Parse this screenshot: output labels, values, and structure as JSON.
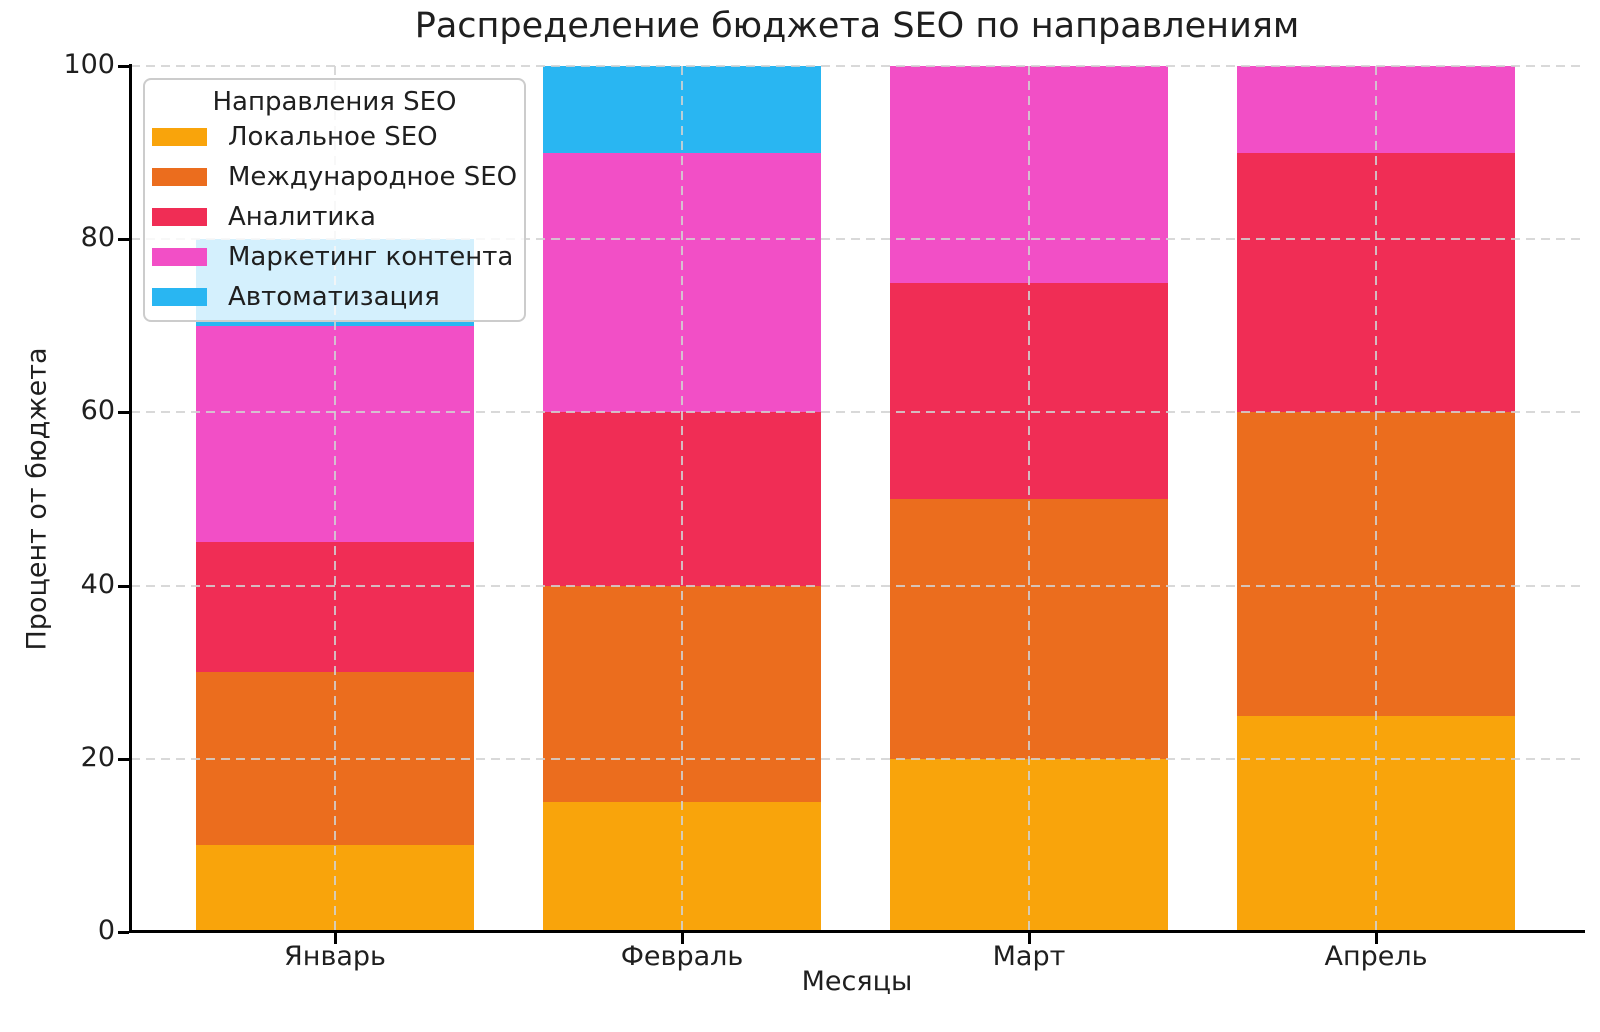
{
  "chart": {
    "title": "Распределение бюджета SEO по направлениям",
    "xlabel": "Месяцы",
    "ylabel": "Процент от бюджета"
  },
  "chart_data": {
    "type": "bar",
    "stacked": true,
    "title": "Распределение бюджета SEO по направлениям",
    "xlabel": "Месяцы",
    "ylabel": "Процент от бюджета",
    "categories": [
      "Январь",
      "Февраль",
      "Март",
      "Апрель"
    ],
    "series": [
      {
        "name": "Локальное SEO",
        "color": "#F9A40B",
        "values": [
          10,
          15,
          20,
          25
        ]
      },
      {
        "name": "Международное SEO",
        "color": "#EB6D1E",
        "values": [
          20,
          25,
          30,
          35
        ]
      },
      {
        "name": "Аналитика",
        "color": "#F02D55",
        "values": [
          15,
          20,
          25,
          30
        ]
      },
      {
        "name": "Маркетинг контента",
        "color": "#F24FC6",
        "values": [
          25,
          30,
          25,
          10
        ]
      },
      {
        "name": "Автоматизация",
        "color": "#29B6F2",
        "values": [
          10,
          10,
          0,
          0
        ]
      }
    ],
    "stack_totals": [
      80,
      100,
      100,
      100
    ],
    "ylim": [
      0,
      100
    ],
    "y_ticks": [
      0,
      20,
      40,
      60,
      80,
      100
    ],
    "grid": {
      "on": true,
      "linestyle": "dashed"
    },
    "legend": {
      "title": "Направления SEO",
      "position": "upper left"
    }
  }
}
